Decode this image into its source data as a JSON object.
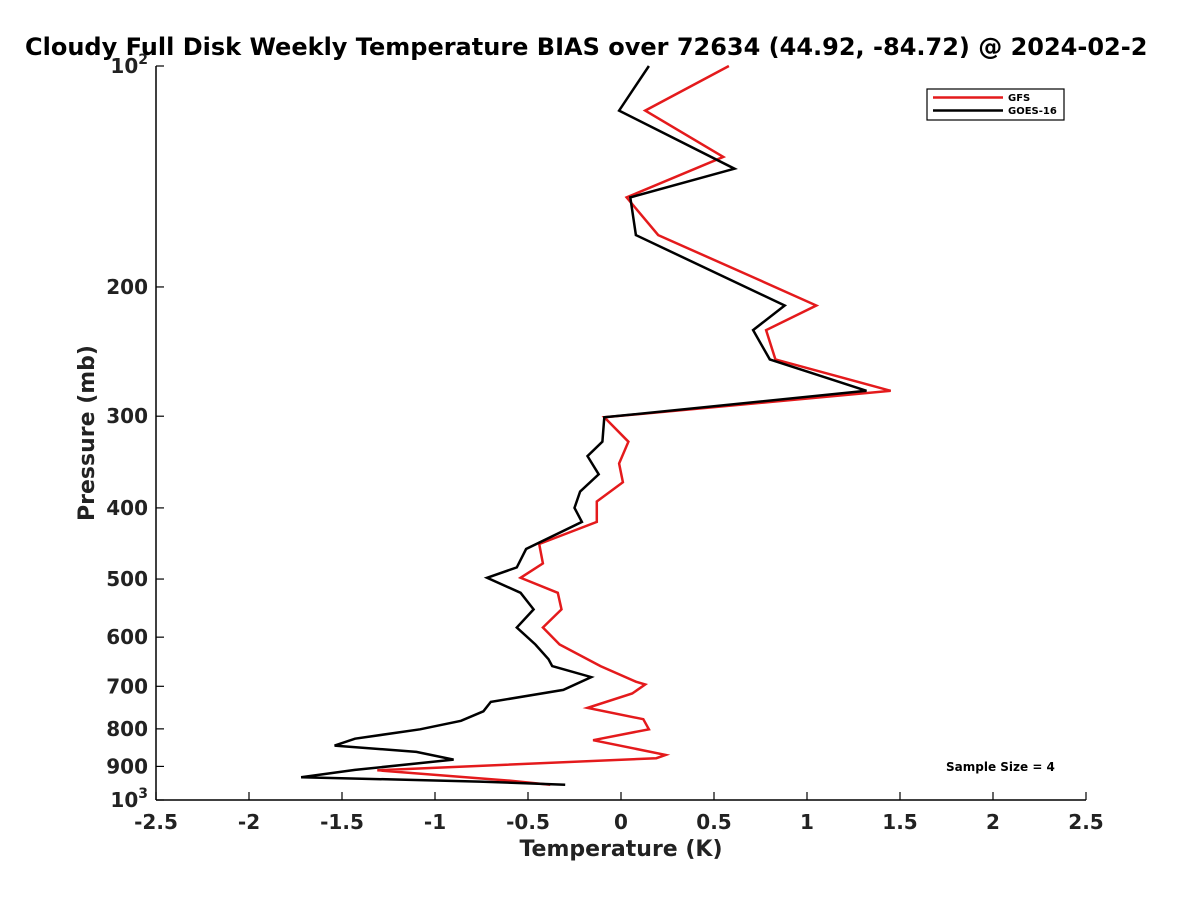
{
  "chart_data": {
    "type": "line",
    "title": "Cloudy Full Disk Weekly Temperature BIAS over 72634 (44.92, -84.72) @ 2024-02-2",
    "xlabel": "Temperature (K)",
    "ylabel": "Pressure (mb)",
    "xlim": [
      -2.5,
      2.5
    ],
    "ylim": [
      100,
      1000
    ],
    "yscale": "log",
    "y_reversed": true,
    "grid": false,
    "legend_position": "top-right",
    "x_ticks": [
      "-2.5",
      "-2",
      "-1.5",
      "-1",
      "-0.5",
      "0",
      "0.5",
      "1",
      "1.5",
      "2",
      "2.5"
    ],
    "x_tick_values": [
      -2.5,
      -2,
      -1.5,
      -1,
      -0.5,
      0,
      0.5,
      1,
      1.5,
      2,
      2.5
    ],
    "y_ticks": [
      {
        "value": 100,
        "base": "10",
        "exp": "2"
      },
      {
        "value": 200,
        "base": "200",
        "exp": ""
      },
      {
        "value": 300,
        "base": "300",
        "exp": ""
      },
      {
        "value": 400,
        "base": "400",
        "exp": ""
      },
      {
        "value": 500,
        "base": "500",
        "exp": ""
      },
      {
        "value": 600,
        "base": "600",
        "exp": ""
      },
      {
        "value": 700,
        "base": "700",
        "exp": ""
      },
      {
        "value": 800,
        "base": "800",
        "exp": ""
      },
      {
        "value": 900,
        "base": "900",
        "exp": ""
      },
      {
        "value": 1000,
        "base": "10",
        "exp": "3"
      }
    ],
    "annotation": "Sample Size = 4",
    "series": [
      {
        "name": "GFS",
        "color": "#e41a1c",
        "points": [
          [
            0.58,
            100
          ],
          [
            0.13,
            115
          ],
          [
            0.55,
            133
          ],
          [
            0.03,
            151
          ],
          [
            0.2,
            170
          ],
          [
            0.73,
            195
          ],
          [
            1.05,
            212
          ],
          [
            0.78,
            229
          ],
          [
            0.83,
            251
          ],
          [
            1.45,
            277
          ],
          [
            -0.09,
            301
          ],
          [
            0.04,
            325
          ],
          [
            -0.01,
            348
          ],
          [
            0.01,
            369
          ],
          [
            -0.13,
            392
          ],
          [
            -0.13,
            418
          ],
          [
            -0.44,
            448
          ],
          [
            -0.42,
            476
          ],
          [
            -0.54,
            498
          ],
          [
            -0.34,
            522
          ],
          [
            -0.32,
            550
          ],
          [
            -0.42,
            582
          ],
          [
            -0.33,
            614
          ],
          [
            -0.11,
            657
          ],
          [
            0.08,
            690
          ],
          [
            0.13,
            696
          ],
          [
            0.06,
            716
          ],
          [
            -0.18,
            749
          ],
          [
            0.12,
            776
          ],
          [
            0.15,
            801
          ],
          [
            -0.15,
            829
          ],
          [
            0.24,
            868
          ],
          [
            0.19,
            877
          ],
          [
            -1.31,
            911
          ],
          [
            -0.6,
            941
          ],
          [
            -0.38,
            953
          ]
        ]
      },
      {
        "name": "GOES-16",
        "color": "#000000",
        "points": [
          [
            0.15,
            100
          ],
          [
            -0.01,
            115
          ],
          [
            0.61,
            138
          ],
          [
            0.05,
            151
          ],
          [
            0.08,
            170
          ],
          [
            0.88,
            212
          ],
          [
            0.71,
            229
          ],
          [
            0.8,
            251
          ],
          [
            1.32,
            277
          ],
          [
            -0.09,
            301
          ],
          [
            -0.1,
            325
          ],
          [
            -0.18,
            340
          ],
          [
            -0.12,
            360
          ],
          [
            -0.22,
            380
          ],
          [
            -0.25,
            400
          ],
          [
            -0.21,
            418
          ],
          [
            -0.51,
            455
          ],
          [
            -0.56,
            482
          ],
          [
            -0.72,
            498
          ],
          [
            -0.54,
            522
          ],
          [
            -0.47,
            550
          ],
          [
            -0.56,
            582
          ],
          [
            -0.46,
            614
          ],
          [
            -0.39,
            643
          ],
          [
            -0.37,
            657
          ],
          [
            -0.16,
            680
          ],
          [
            -0.31,
            708
          ],
          [
            -0.7,
            735
          ],
          [
            -0.74,
            757
          ],
          [
            -0.86,
            780
          ],
          [
            -1.08,
            801
          ],
          [
            -1.43,
            825
          ],
          [
            -1.54,
            843
          ],
          [
            -1.1,
            860
          ],
          [
            -0.9,
            881
          ],
          [
            -1.43,
            910
          ],
          [
            -1.72,
            931
          ],
          [
            -0.76,
            944
          ],
          [
            -0.3,
            953
          ]
        ]
      }
    ]
  }
}
